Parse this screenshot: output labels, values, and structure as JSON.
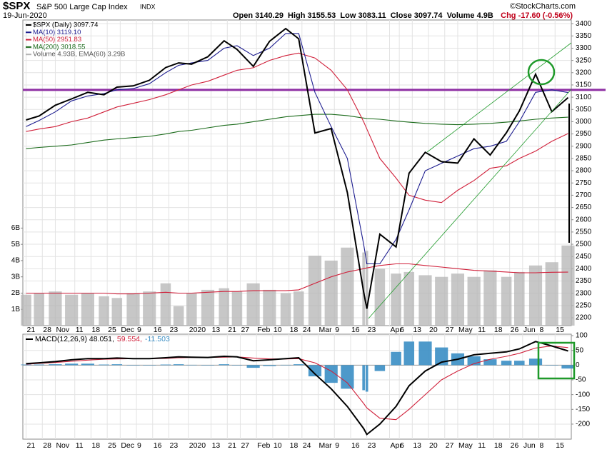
{
  "header": {
    "title": "$SPX",
    "subtitle": "S&P 500 Large Cap Index",
    "exchange": "INDX",
    "date": "19-Jun-2020",
    "quote": "Open 3140.29  High 3155.53  Low 3083.11  Close 3097.74  Volume 4.9B",
    "change": "Chg -17.60 (-0.56%)",
    "credit": "©StockCharts.com"
  },
  "chart_data": [
    {
      "type": "line",
      "legend": "top-left",
      "legend_flow": "vertical",
      "grid": true,
      "x": [
        0,
        4,
        9,
        14,
        19,
        24,
        28,
        33,
        38,
        43,
        47,
        51,
        56,
        61,
        65,
        70,
        75,
        80,
        84,
        89,
        94,
        99,
        104,
        105,
        109,
        114,
        118,
        123,
        128,
        133,
        138,
        143,
        148,
        152,
        157,
        162,
        167
      ],
      "xlim": [
        -1,
        168
      ],
      "xticks": [
        {
          "value": 0,
          "label": "21"
        },
        {
          "value": 5,
          "label": "28"
        },
        {
          "value": 9,
          "label": "Nov"
        },
        {
          "value": 15,
          "label": "11"
        },
        {
          "value": 20,
          "label": "18"
        },
        {
          "value": 25,
          "label": "25"
        },
        {
          "value": 29,
          "label": "Dec"
        },
        {
          "value": 34,
          "label": "9"
        },
        {
          "value": 39,
          "label": "16"
        },
        {
          "value": 44,
          "label": "23"
        },
        {
          "value": 50,
          "label": "2020"
        },
        {
          "value": 57,
          "label": "13"
        },
        {
          "value": 62,
          "label": "21"
        },
        {
          "value": 66,
          "label": "27"
        },
        {
          "value": 71,
          "label": "Feb"
        },
        {
          "value": 76,
          "label": "10"
        },
        {
          "value": 81,
          "label": "18"
        },
        {
          "value": 85,
          "label": "24"
        },
        {
          "value": 90,
          "label": "Mar"
        },
        {
          "value": 95,
          "label": "9"
        },
        {
          "value": 100,
          "label": "16"
        },
        {
          "value": 105,
          "label": "23"
        },
        {
          "value": 112,
          "label": "Apr"
        },
        {
          "value": 115,
          "label": "6"
        },
        {
          "value": 119,
          "label": "13"
        },
        {
          "value": 124,
          "label": "20"
        },
        {
          "value": 129,
          "label": "27"
        },
        {
          "value": 133,
          "label": "May"
        },
        {
          "value": 139,
          "label": "11"
        },
        {
          "value": 144,
          "label": "18"
        },
        {
          "value": 149,
          "label": "26"
        },
        {
          "value": 153,
          "label": "Jun"
        },
        {
          "value": 158,
          "label": "8"
        },
        {
          "value": 163,
          "label": "15"
        }
      ],
      "ylim": [
        2168,
        3415
      ],
      "yticks": [
        2200,
        2250,
        2300,
        2350,
        2400,
        2450,
        2500,
        2550,
        2600,
        2650,
        2700,
        2750,
        2800,
        2850,
        2900,
        2950,
        3000,
        3050,
        3100,
        3150,
        3200,
        3250,
        3300,
        3350,
        3400
      ],
      "y2lim": [
        0,
        18.8
      ],
      "y2ticks": [
        {
          "value": 1,
          "label": "1B"
        },
        {
          "value": 2,
          "label": "2B"
        },
        {
          "value": 3,
          "label": "3B"
        },
        {
          "value": 4,
          "label": "4B"
        },
        {
          "value": 5,
          "label": "5B"
        },
        {
          "value": 6,
          "label": "6B"
        }
      ],
      "hline": {
        "value": 3130,
        "color": "#8e2fa3"
      },
      "series": [
        {
          "name": "$SPX (Daily) 3097.74",
          "color": "#000000",
          "style": "line",
          "values": [
            3007,
            3023,
            3067,
            3093,
            3120,
            3110,
            3141,
            3146,
            3169,
            3221,
            3240,
            3235,
            3265,
            3330,
            3295,
            3226,
            3328,
            3380,
            3338,
            2954,
            2972,
            2711,
            2305,
            2237,
            2541,
            2489,
            2790,
            2875,
            2837,
            2831,
            2930,
            2864,
            2955,
            3044,
            3194,
            3041,
            3098
          ]
        },
        {
          "name": "MA(10) 3119.10",
          "color": "#1c1c8f",
          "style": "line",
          "values": [
            2980,
            3005,
            3040,
            3085,
            3105,
            3115,
            3130,
            3135,
            3155,
            3200,
            3230,
            3240,
            3250,
            3300,
            3310,
            3270,
            3300,
            3360,
            3360,
            3120,
            2980,
            2850,
            2500,
            2420,
            2420,
            2520,
            2640,
            2800,
            2830,
            2860,
            2890,
            2900,
            2920,
            3000,
            3120,
            3130,
            3119.1
          ]
        },
        {
          "name": "MA(50) 2951.83",
          "color": "#d0203a",
          "style": "line",
          "values": [
            2960,
            2970,
            2980,
            3000,
            3015,
            3040,
            3060,
            3075,
            3090,
            3110,
            3130,
            3150,
            3165,
            3190,
            3210,
            3220,
            3250,
            3270,
            3280,
            3260,
            3210,
            3130,
            3000,
            2970,
            2850,
            2770,
            2700,
            2680,
            2670,
            2720,
            2760,
            2810,
            2820,
            2850,
            2880,
            2920,
            2951.83
          ]
        },
        {
          "name": "MA(200) 3018.55",
          "color": "#1b6b1b",
          "style": "line",
          "values": [
            2890,
            2895,
            2900,
            2905,
            2915,
            2925,
            2930,
            2935,
            2940,
            2950,
            2960,
            2965,
            2975,
            2985,
            2990,
            3000,
            3010,
            3020,
            3025,
            3030,
            3030,
            3025,
            3015,
            3013,
            3010,
            3003,
            2998,
            2993,
            2990,
            2988,
            2990,
            2993,
            2998,
            3003,
            3010,
            3015,
            3018.55
          ]
        },
        {
          "name": "Volume 4.93B, EMA(60) 3.29B",
          "color": "#b4b4b4",
          "style": "bar",
          "axis": "y2",
          "values": [
            1.9,
            2.0,
            2.1,
            1.9,
            2.0,
            1.8,
            1.7,
            2.0,
            2.1,
            2.6,
            1.2,
            2.0,
            2.2,
            2.3,
            2.1,
            2.6,
            2.2,
            2.0,
            2.1,
            4.3,
            4.0,
            4.8,
            4.5,
            4.6,
            3.5,
            3.2,
            3.3,
            3.1,
            3.0,
            3.2,
            3.0,
            3.4,
            3.0,
            3.3,
            3.7,
            3.9,
            4.93
          ]
        },
        {
          "color": "#d0203a",
          "style": "line",
          "axis": "y2",
          "values": [
            2.0,
            2.0,
            2.0,
            2.0,
            2.0,
            2.0,
            1.95,
            1.95,
            2.0,
            2.05,
            2.0,
            2.0,
            2.05,
            2.1,
            2.1,
            2.15,
            2.15,
            2.15,
            2.2,
            2.6,
            3.0,
            3.3,
            3.5,
            3.55,
            3.7,
            3.8,
            3.8,
            3.7,
            3.6,
            3.5,
            3.4,
            3.35,
            3.3,
            3.25,
            3.25,
            3.28,
            3.29
          ]
        }
      ]
    },
    {
      "type": "line",
      "legend": "top-left",
      "legend_flow": "horizontal",
      "grid": true,
      "x": [
        0,
        4,
        9,
        14,
        19,
        24,
        28,
        33,
        38,
        43,
        47,
        51,
        56,
        61,
        65,
        70,
        75,
        80,
        84,
        89,
        94,
        99,
        104,
        105,
        109,
        114,
        118,
        123,
        128,
        133,
        138,
        143,
        148,
        152,
        157,
        162,
        167
      ],
      "xlim": [
        -1,
        168
      ],
      "xticks": [
        {
          "value": 0,
          "label": "21"
        },
        {
          "value": 5,
          "label": "28"
        },
        {
          "value": 9,
          "label": "Nov"
        },
        {
          "value": 15,
          "label": "11"
        },
        {
          "value": 20,
          "label": "18"
        },
        {
          "value": 25,
          "label": "25"
        },
        {
          "value": 29,
          "label": "Dec"
        },
        {
          "value": 34,
          "label": "9"
        },
        {
          "value": 39,
          "label": "16"
        },
        {
          "value": 44,
          "label": "23"
        },
        {
          "value": 50,
          "label": "2020"
        },
        {
          "value": 57,
          "label": "13"
        },
        {
          "value": 62,
          "label": "21"
        },
        {
          "value": 66,
          "label": "27"
        },
        {
          "value": 71,
          "label": "Feb"
        },
        {
          "value": 76,
          "label": "10"
        },
        {
          "value": 81,
          "label": "18"
        },
        {
          "value": 85,
          "label": "24"
        },
        {
          "value": 90,
          "label": "Mar"
        },
        {
          "value": 95,
          "label": "9"
        },
        {
          "value": 100,
          "label": "16"
        },
        {
          "value": 105,
          "label": "23"
        },
        {
          "value": 112,
          "label": "Apr"
        },
        {
          "value": 115,
          "label": "6"
        },
        {
          "value": 119,
          "label": "13"
        },
        {
          "value": 124,
          "label": "20"
        },
        {
          "value": 129,
          "label": "27"
        },
        {
          "value": 133,
          "label": "May"
        },
        {
          "value": 139,
          "label": "11"
        },
        {
          "value": 144,
          "label": "18"
        },
        {
          "value": 149,
          "label": "26"
        },
        {
          "value": 153,
          "label": "Jun"
        },
        {
          "value": 158,
          "label": "8"
        },
        {
          "value": 163,
          "label": "15"
        }
      ],
      "ylim": [
        -251,
        105
      ],
      "yticks": [
        100,
        50,
        0,
        -50,
        -100,
        -150,
        -200
      ],
      "series": [
        {
          "name": "MACD(12,26,9) 48.051,",
          "color": "#000000",
          "style": "line",
          "values": [
            5,
            8,
            12,
            18,
            22,
            22,
            24,
            22,
            22,
            25,
            28,
            27,
            26,
            30,
            28,
            15,
            18,
            22,
            25,
            -30,
            -80,
            -140,
            -215,
            -235,
            -200,
            -140,
            -70,
            -20,
            10,
            20,
            35,
            40,
            45,
            55,
            80,
            65,
            48.051
          ]
        },
        {
          "name": "59.554,",
          "color": "#d0203a",
          "style": "line",
          "values": [
            3,
            6,
            9,
            13,
            17,
            20,
            21,
            22,
            22,
            23,
            25,
            26,
            26,
            27,
            28,
            24,
            21,
            21,
            22,
            8,
            -20,
            -60,
            -130,
            -145,
            -180,
            -185,
            -150,
            -100,
            -50,
            -20,
            5,
            20,
            30,
            40,
            58,
            65,
            59.554
          ]
        },
        {
          "name": "-11.503",
          "color": "#3a8ec4",
          "style": "bar",
          "values": [
            2,
            2,
            3,
            5,
            5,
            2,
            3,
            0,
            0,
            2,
            3,
            1,
            0,
            3,
            0,
            -9,
            -3,
            1,
            3,
            -38,
            -60,
            -80,
            -85,
            -90,
            -20,
            45,
            80,
            80,
            60,
            40,
            30,
            20,
            15,
            15,
            22,
            0,
            -11.503
          ]
        }
      ]
    }
  ]
}
